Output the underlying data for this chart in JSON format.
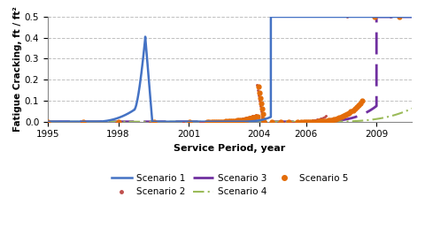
{
  "title": "",
  "xlabel": "Service Period, year",
  "ylabel": "Fatigue Cracking, ft / ft²",
  "xlim": [
    1995,
    2010.5
  ],
  "ylim": [
    0,
    0.5
  ],
  "xticks": [
    1995,
    1998,
    2001,
    2004,
    2006,
    2009
  ],
  "yticks": [
    0,
    0.1,
    0.2,
    0.3,
    0.4,
    0.5
  ],
  "scenario1_color": "#4472C4",
  "scenario2_color": "#C0504D",
  "scenario3_color": "#7030A0",
  "scenario4_color": "#9BBB59",
  "scenario5_color": "#E36C09",
  "background_color": "#ffffff",
  "grid_color": "#c0c0c0",
  "plot_bg": "#f8f8f8"
}
